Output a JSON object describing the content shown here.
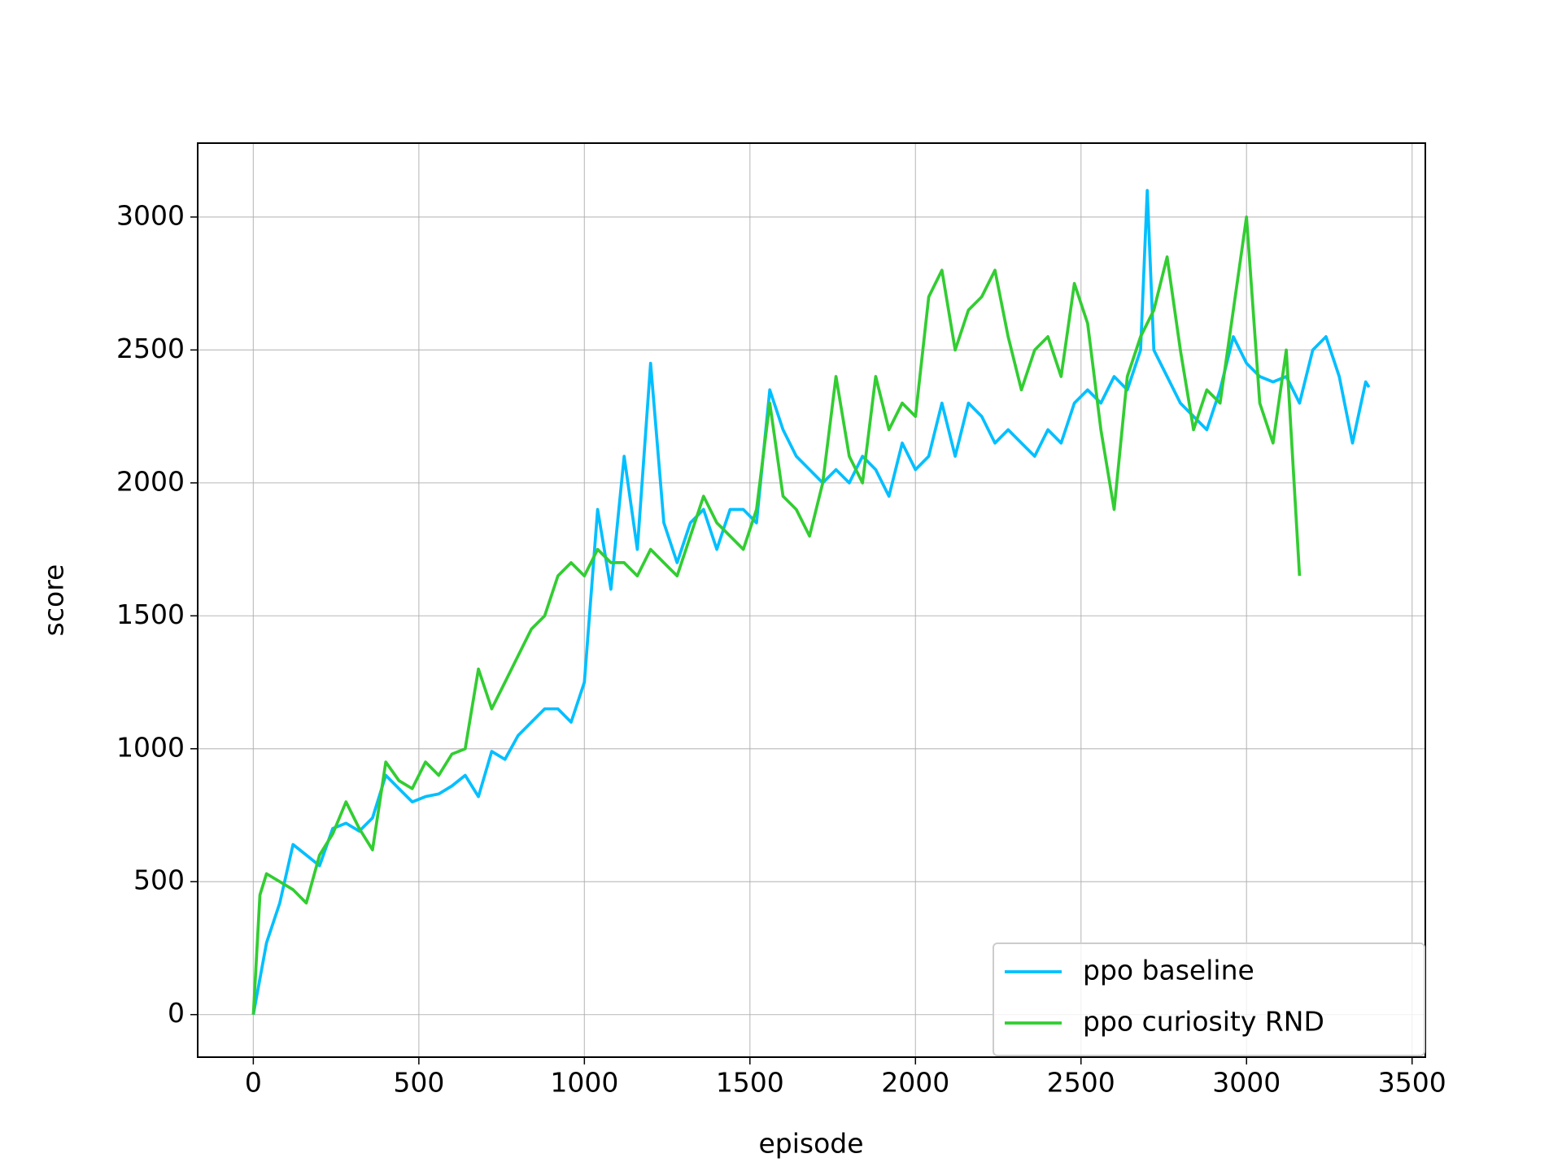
{
  "chart_data": {
    "type": "line",
    "xlabel": "episode",
    "ylabel": "score",
    "xlim": [
      -168,
      3540
    ],
    "ylim": [
      -160,
      3278
    ],
    "xticks": [
      0,
      500,
      1000,
      1500,
      2000,
      2500,
      3000,
      3500
    ],
    "yticks": [
      0,
      500,
      1000,
      1500,
      2000,
      2500,
      3000
    ],
    "grid": true,
    "legend": "lower right",
    "series": [
      {
        "name": "ppo baseline",
        "color": "#00bfff",
        "x": [
          0,
          40,
          80,
          120,
          160,
          200,
          240,
          280,
          320,
          360,
          400,
          440,
          480,
          520,
          560,
          600,
          640,
          680,
          720,
          760,
          800,
          840,
          880,
          920,
          960,
          1000,
          1040,
          1080,
          1120,
          1160,
          1200,
          1240,
          1280,
          1320,
          1360,
          1400,
          1440,
          1480,
          1520,
          1560,
          1600,
          1640,
          1680,
          1720,
          1760,
          1800,
          1840,
          1880,
          1920,
          1960,
          2000,
          2040,
          2080,
          2120,
          2160,
          2200,
          2240,
          2280,
          2320,
          2360,
          2400,
          2440,
          2480,
          2520,
          2560,
          2600,
          2640,
          2680,
          2700,
          2720,
          2760,
          2800,
          2840,
          2880,
          2920,
          2960,
          3000,
          3040,
          3080,
          3120,
          3160,
          3200,
          3240,
          3280,
          3320,
          3360,
          3370
        ],
        "values": [
          0,
          270,
          420,
          640,
          600,
          560,
          700,
          720,
          690,
          740,
          900,
          850,
          800,
          820,
          830,
          860,
          900,
          820,
          990,
          960,
          1050,
          1100,
          1150,
          1150,
          1100,
          1250,
          1900,
          1600,
          2100,
          1750,
          2450,
          1850,
          1700,
          1850,
          1900,
          1750,
          1900,
          1900,
          1850,
          2350,
          2200,
          2100,
          2050,
          2000,
          2050,
          2000,
          2100,
          2050,
          1950,
          2150,
          2050,
          2100,
          2300,
          2100,
          2300,
          2250,
          2150,
          2200,
          2150,
          2100,
          2200,
          2150,
          2300,
          2350,
          2300,
          2400,
          2350,
          2500,
          3100,
          2500,
          2400,
          2300,
          2250,
          2200,
          2350,
          2550,
          2450,
          2400,
          2380,
          2400,
          2300,
          2500,
          2550,
          2400,
          2150,
          2380,
          2360
        ]
      },
      {
        "name": "ppo curiosity RND",
        "color": "#32cd32",
        "x": [
          0,
          20,
          40,
          80,
          120,
          160,
          200,
          240,
          280,
          320,
          360,
          400,
          440,
          480,
          520,
          560,
          600,
          640,
          680,
          720,
          760,
          800,
          840,
          880,
          920,
          960,
          1000,
          1040,
          1080,
          1120,
          1160,
          1200,
          1240,
          1280,
          1320,
          1360,
          1400,
          1440,
          1480,
          1520,
          1560,
          1600,
          1640,
          1680,
          1720,
          1760,
          1800,
          1840,
          1880,
          1920,
          1960,
          2000,
          2040,
          2080,
          2120,
          2160,
          2200,
          2240,
          2280,
          2320,
          2360,
          2400,
          2440,
          2480,
          2520,
          2560,
          2600,
          2640,
          2680,
          2720,
          2760,
          2800,
          2840,
          2880,
          2920,
          2960,
          3000,
          3040,
          3080,
          3120,
          3160
        ],
        "values": [
          0,
          450,
          530,
          500,
          470,
          420,
          600,
          680,
          800,
          700,
          620,
          950,
          880,
          850,
          950,
          900,
          980,
          1000,
          1300,
          1150,
          1250,
          1350,
          1450,
          1500,
          1650,
          1700,
          1650,
          1750,
          1700,
          1700,
          1650,
          1750,
          1700,
          1650,
          1800,
          1950,
          1850,
          1800,
          1750,
          1900,
          2300,
          1950,
          1900,
          1800,
          2000,
          2400,
          2100,
          2000,
          2400,
          2200,
          2300,
          2250,
          2700,
          2800,
          2500,
          2650,
          2700,
          2800,
          2550,
          2350,
          2500,
          2550,
          2400,
          2750,
          2600,
          2200,
          1900,
          2400,
          2550,
          2650,
          2850,
          2500,
          2200,
          2350,
          2300,
          2650,
          3000,
          2300,
          2150,
          2500,
          1650
        ]
      }
    ]
  }
}
